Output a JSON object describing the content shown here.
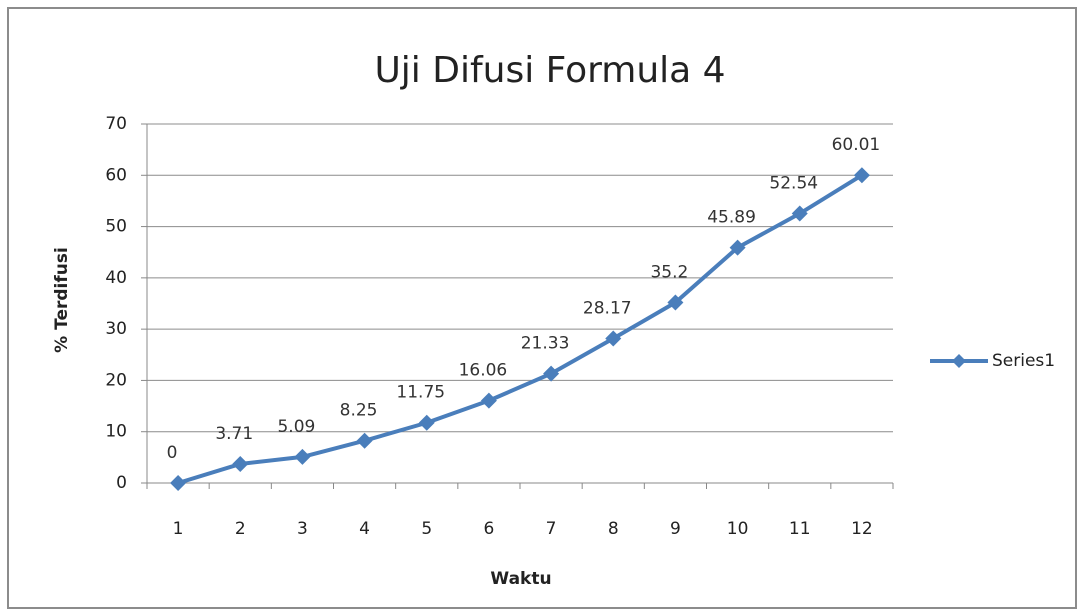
{
  "chart_data": {
    "type": "line",
    "title": "Uji Difusi Formula 4",
    "x_label": "Waktu",
    "y_label": "% Terdifusi",
    "categories": [
      "1",
      "2",
      "3",
      "4",
      "5",
      "6",
      "7",
      "8",
      "9",
      "10",
      "11",
      "12"
    ],
    "series": [
      {
        "name": "Series1",
        "color": "#4a7ebb",
        "values": [
          0,
          3.71,
          5.09,
          8.25,
          11.75,
          16.06,
          21.33,
          28.17,
          35.2,
          45.89,
          52.54,
          60.01
        ]
      }
    ],
    "ylim": [
      0,
      70
    ],
    "yticks": [
      0,
      10,
      20,
      30,
      40,
      50,
      60,
      70
    ],
    "grid": true,
    "legend": "right"
  }
}
